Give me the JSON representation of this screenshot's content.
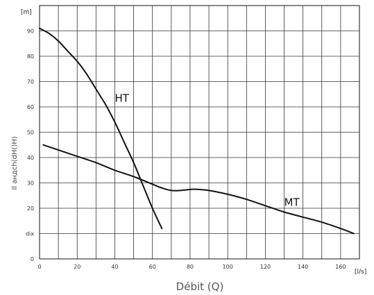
{
  "chart_data": {
    "type": "line",
    "title": "",
    "xlabel": "Débit (Q)",
    "ylabel": "Il aндch(dH()H)",
    "x_unit": "[l/s]",
    "y_unit": "[m]",
    "xlim": [
      0,
      170
    ],
    "ylim": [
      0,
      100
    ],
    "x_ticks": [
      0,
      20,
      40,
      60,
      80,
      100,
      120,
      140,
      160
    ],
    "y_ticks": [
      0,
      10,
      20,
      30,
      40,
      50,
      60,
      70,
      80,
      90
    ],
    "y_tick_labels": [
      "0",
      "dix",
      "20",
      "30",
      "40",
      "50",
      "60",
      "70",
      "80",
      "90"
    ],
    "grid": true,
    "series": [
      {
        "name": "HT",
        "color": "#111111",
        "points": [
          [
            0,
            91
          ],
          [
            5,
            89
          ],
          [
            10,
            86
          ],
          [
            15,
            82
          ],
          [
            20,
            78
          ],
          [
            25,
            73
          ],
          [
            30,
            67
          ],
          [
            35,
            61
          ],
          [
            40,
            54
          ],
          [
            45,
            46
          ],
          [
            50,
            38
          ],
          [
            55,
            29
          ],
          [
            60,
            20
          ],
          [
            65,
            12
          ]
        ]
      },
      {
        "name": "MT",
        "color": "#111111",
        "points": [
          [
            2,
            45
          ],
          [
            10,
            43
          ],
          [
            20,
            40.5
          ],
          [
            30,
            38
          ],
          [
            40,
            35
          ],
          [
            50,
            32.5
          ],
          [
            60,
            29.5
          ],
          [
            65,
            28
          ],
          [
            70,
            27
          ],
          [
            75,
            27
          ],
          [
            82,
            27.5
          ],
          [
            90,
            27
          ],
          [
            100,
            25.5
          ],
          [
            110,
            23.5
          ],
          [
            120,
            21
          ],
          [
            130,
            18.5
          ],
          [
            140,
            16.5
          ],
          [
            150,
            14.5
          ],
          [
            160,
            12
          ],
          [
            167,
            10
          ]
        ]
      }
    ],
    "annotations": [
      {
        "text": "HT",
        "x": 40,
        "y": 62
      },
      {
        "text": "MT",
        "x": 130,
        "y": 21
      }
    ]
  }
}
